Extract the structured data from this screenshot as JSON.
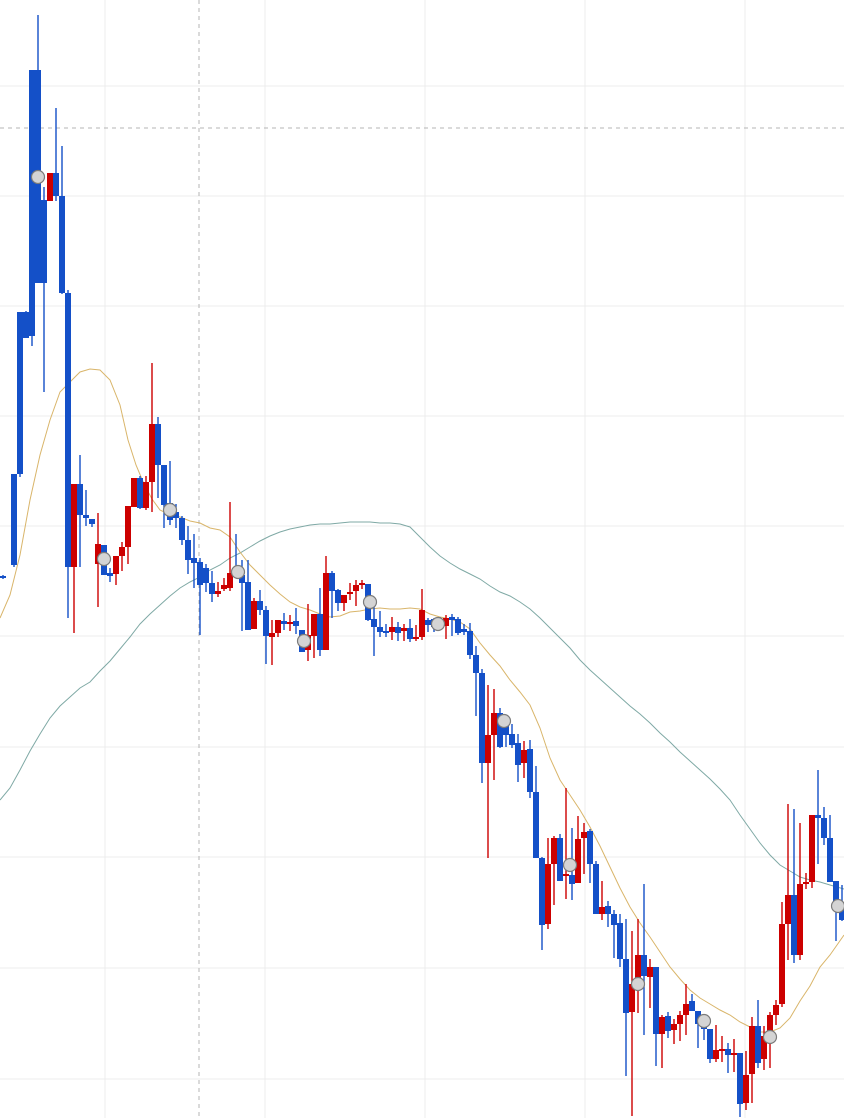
{
  "chart_data": {
    "type": "candlestick",
    "title": "",
    "xlabel": "",
    "ylabel": "",
    "ylim": [
      0,
      1118
    ],
    "grid": true,
    "colors": {
      "up": "#cc0000",
      "down": "#1450c8",
      "ma_short": "#d9b56a",
      "ma_long": "#7fa9a5",
      "marker_fill": "#d4d4d4",
      "grid": "#ececec",
      "crosshair": "#b4b4b4"
    },
    "candles": [
      [
        3,
        579,
        575,
        576,
        578
      ],
      [
        14,
        474,
        567,
        474,
        565
      ],
      [
        20,
        312,
        477,
        312,
        474
      ],
      [
        26,
        311,
        338,
        312,
        338
      ],
      [
        32,
        70,
        346,
        70,
        336
      ],
      [
        38,
        15,
        283,
        70,
        283
      ],
      [
        44,
        187,
        392,
        200,
        283
      ],
      [
        50,
        173,
        201,
        201,
        173
      ],
      [
        56,
        108,
        201,
        173,
        196
      ],
      [
        62,
        146,
        294,
        196,
        293
      ],
      [
        68,
        290,
        618,
        293,
        567
      ],
      [
        74,
        484,
        633,
        567,
        484
      ],
      [
        80,
        455,
        567,
        484,
        515
      ],
      [
        86,
        490,
        526,
        515,
        518
      ],
      [
        92,
        520,
        527,
        519,
        524
      ],
      [
        98,
        513,
        607,
        564,
        544
      ],
      [
        104,
        545,
        574,
        545,
        575
      ],
      [
        110,
        568,
        582,
        573,
        576
      ],
      [
        116,
        559,
        585,
        574,
        556
      ],
      [
        122,
        542,
        571,
        556,
        547
      ],
      [
        128,
        506,
        564,
        547,
        506
      ],
      [
        134,
        478,
        507,
        507,
        478
      ],
      [
        140,
        476,
        509,
        478,
        508
      ],
      [
        146,
        476,
        510,
        508,
        482
      ],
      [
        152,
        363,
        512,
        482,
        424
      ],
      [
        158,
        417,
        498,
        424,
        465
      ],
      [
        164,
        469,
        528,
        465,
        505
      ],
      [
        170,
        461,
        525,
        503,
        520
      ],
      [
        176,
        504,
        528,
        512,
        518
      ],
      [
        182,
        516,
        545,
        518,
        540
      ],
      [
        188,
        526,
        574,
        540,
        560
      ],
      [
        194,
        534,
        588,
        558,
        563
      ],
      [
        200,
        558,
        635,
        562,
        585
      ],
      [
        206,
        564,
        592,
        568,
        583
      ],
      [
        212,
        571,
        602,
        583,
        594
      ],
      [
        218,
        582,
        597,
        594,
        591
      ],
      [
        224,
        578,
        591,
        589,
        585
      ],
      [
        230,
        502,
        591,
        588,
        573
      ],
      [
        236,
        534,
        578,
        573,
        573
      ],
      [
        242,
        560,
        631,
        575,
        583
      ],
      [
        248,
        560,
        630,
        582,
        630
      ],
      [
        254,
        598,
        625,
        629,
        601
      ],
      [
        260,
        590,
        615,
        601,
        610
      ],
      [
        266,
        606,
        664,
        610,
        636
      ],
      [
        272,
        620,
        665,
        637,
        633
      ],
      [
        278,
        620,
        637,
        633,
        620
      ],
      [
        284,
        613,
        630,
        621,
        624
      ],
      [
        290,
        615,
        631,
        624,
        622
      ],
      [
        296,
        608,
        634,
        621,
        626
      ],
      [
        302,
        630,
        652,
        630,
        652
      ],
      [
        308,
        604,
        661,
        650,
        635
      ],
      [
        314,
        622,
        658,
        636,
        614
      ],
      [
        320,
        588,
        656,
        614,
        650
      ],
      [
        326,
        556,
        650,
        650,
        573
      ],
      [
        332,
        571,
        618,
        573,
        591
      ],
      [
        338,
        589,
        611,
        590,
        603
      ],
      [
        344,
        597,
        611,
        603,
        595
      ],
      [
        350,
        583,
        600,
        593,
        592
      ],
      [
        356,
        580,
        606,
        591,
        585
      ],
      [
        362,
        580,
        589,
        585,
        583
      ],
      [
        368,
        584,
        621,
        584,
        620
      ],
      [
        374,
        605,
        656,
        619,
        627
      ],
      [
        380,
        611,
        637,
        627,
        632
      ],
      [
        386,
        624,
        637,
        631,
        632
      ],
      [
        392,
        617,
        640,
        632,
        627
      ],
      [
        398,
        622,
        641,
        627,
        633
      ],
      [
        404,
        624,
        641,
        631,
        628
      ],
      [
        410,
        619,
        642,
        628,
        639
      ],
      [
        416,
        625,
        641,
        638,
        637
      ],
      [
        422,
        589,
        640,
        637,
        610
      ],
      [
        428,
        618,
        632,
        620,
        625
      ],
      [
        434,
        618,
        632,
        619,
        627
      ],
      [
        440,
        617,
        628,
        626,
        626
      ],
      [
        446,
        615,
        639,
        626,
        618
      ],
      [
        452,
        614,
        636,
        617,
        620
      ],
      [
        458,
        617,
        635,
        619,
        633
      ],
      [
        464,
        624,
        635,
        629,
        632
      ],
      [
        470,
        623,
        659,
        631,
        655
      ],
      [
        476,
        646,
        716,
        655,
        673
      ],
      [
        482,
        669,
        783,
        673,
        763
      ],
      [
        488,
        685,
        858,
        763,
        735
      ],
      [
        494,
        689,
        780,
        735,
        713
      ],
      [
        500,
        708,
        748,
        713,
        747
      ],
      [
        506,
        715,
        747,
        724,
        735
      ],
      [
        512,
        724,
        748,
        734,
        745
      ],
      [
        518,
        734,
        782,
        743,
        765
      ],
      [
        524,
        741,
        778,
        763,
        750
      ],
      [
        530,
        740,
        798,
        749,
        792
      ],
      [
        536,
        766,
        853,
        792,
        858
      ],
      [
        542,
        857,
        950,
        858,
        925
      ],
      [
        548,
        838,
        929,
        924,
        864
      ],
      [
        554,
        836,
        905,
        864,
        838
      ],
      [
        560,
        834,
        880,
        838,
        881
      ],
      [
        566,
        788,
        899,
        875,
        874
      ],
      [
        572,
        828,
        900,
        875,
        884
      ],
      [
        578,
        816,
        882,
        883,
        839
      ],
      [
        584,
        823,
        874,
        838,
        832
      ],
      [
        590,
        829,
        883,
        831,
        864
      ],
      [
        596,
        861,
        913,
        864,
        914
      ],
      [
        602,
        881,
        920,
        914,
        907
      ],
      [
        608,
        901,
        927,
        906,
        914
      ],
      [
        614,
        910,
        958,
        914,
        925
      ],
      [
        620,
        914,
        967,
        923,
        959
      ],
      [
        626,
        919,
        1076,
        959,
        1013
      ],
      [
        632,
        931,
        1116,
        1012,
        984
      ],
      [
        638,
        919,
        1013,
        984,
        955
      ],
      [
        644,
        884,
        1035,
        955,
        976
      ],
      [
        650,
        959,
        1008,
        977,
        967
      ],
      [
        656,
        972,
        1066,
        967,
        1034
      ],
      [
        662,
        1015,
        1068,
        1034,
        1017
      ],
      [
        668,
        1012,
        1038,
        1016,
        1031
      ],
      [
        674,
        1019,
        1044,
        1030,
        1024
      ],
      [
        680,
        1011,
        1041,
        1024,
        1015
      ],
      [
        686,
        984,
        1035,
        1015,
        1004
      ],
      [
        692,
        994,
        1008,
        1001,
        1011
      ],
      [
        698,
        1012,
        1048,
        1011,
        1024
      ],
      [
        704,
        1020,
        1040,
        1024,
        1029
      ],
      [
        710,
        1029,
        1063,
        1029,
        1059
      ],
      [
        716,
        1025,
        1062,
        1059,
        1050
      ],
      [
        722,
        1036,
        1062,
        1050,
        1049
      ],
      [
        728,
        1043,
        1073,
        1049,
        1055
      ],
      [
        734,
        1039,
        1072,
        1055,
        1053
      ],
      [
        740,
        1056,
        1117,
        1053,
        1104
      ],
      [
        746,
        1051,
        1110,
        1103,
        1075
      ],
      [
        752,
        1017,
        1103,
        1074,
        1026
      ],
      [
        758,
        1000,
        1068,
        1026,
        1063
      ],
      [
        764,
        1026,
        1070,
        1059,
        1036
      ],
      [
        770,
        1012,
        1068,
        1036,
        1015
      ],
      [
        776,
        1000,
        1025,
        1015,
        1005
      ],
      [
        782,
        902,
        1007,
        1004,
        924
      ],
      [
        788,
        804,
        960,
        924,
        895
      ],
      [
        794,
        809,
        963,
        895,
        955
      ],
      [
        800,
        823,
        960,
        955,
        884
      ],
      [
        806,
        873,
        889,
        884,
        882
      ],
      [
        812,
        815,
        888,
        882,
        815
      ],
      [
        818,
        770,
        864,
        815,
        818
      ],
      [
        824,
        807,
        845,
        818,
        838
      ],
      [
        830,
        815,
        882,
        838,
        882
      ],
      [
        836,
        883,
        941,
        881,
        905
      ],
      [
        842,
        885,
        921,
        904,
        920
      ]
    ],
    "ma_short": [
      [
        0,
        618
      ],
      [
        10,
        595
      ],
      [
        20,
        555
      ],
      [
        30,
        500
      ],
      [
        40,
        455
      ],
      [
        50,
        420
      ],
      [
        60,
        392
      ],
      [
        70,
        382
      ],
      [
        80,
        372
      ],
      [
        90,
        369
      ],
      [
        100,
        370
      ],
      [
        110,
        380
      ],
      [
        120,
        405
      ],
      [
        128,
        440
      ],
      [
        136,
        465
      ],
      [
        144,
        484
      ],
      [
        152,
        499
      ],
      [
        160,
        510
      ],
      [
        170,
        515
      ],
      [
        180,
        517
      ],
      [
        190,
        521
      ],
      [
        200,
        523
      ],
      [
        210,
        528
      ],
      [
        220,
        530
      ],
      [
        230,
        537
      ],
      [
        240,
        552
      ],
      [
        250,
        565
      ],
      [
        260,
        575
      ],
      [
        270,
        585
      ],
      [
        280,
        594
      ],
      [
        290,
        602
      ],
      [
        300,
        607
      ],
      [
        310,
        610
      ],
      [
        320,
        614
      ],
      [
        330,
        617
      ],
      [
        340,
        616
      ],
      [
        350,
        612
      ],
      [
        360,
        611
      ],
      [
        370,
        609
      ],
      [
        380,
        608
      ],
      [
        390,
        609
      ],
      [
        400,
        609
      ],
      [
        410,
        608
      ],
      [
        420,
        609
      ],
      [
        430,
        614
      ],
      [
        440,
        617
      ],
      [
        450,
        619
      ],
      [
        460,
        622
      ],
      [
        470,
        629
      ],
      [
        480,
        643
      ],
      [
        490,
        655
      ],
      [
        500,
        666
      ],
      [
        510,
        680
      ],
      [
        520,
        692
      ],
      [
        530,
        705
      ],
      [
        540,
        728
      ],
      [
        550,
        758
      ],
      [
        560,
        780
      ],
      [
        570,
        795
      ],
      [
        580,
        810
      ],
      [
        590,
        827
      ],
      [
        600,
        846
      ],
      [
        610,
        867
      ],
      [
        620,
        888
      ],
      [
        630,
        907
      ],
      [
        640,
        923
      ],
      [
        650,
        937
      ],
      [
        660,
        952
      ],
      [
        670,
        967
      ],
      [
        680,
        979
      ],
      [
        690,
        990
      ],
      [
        700,
        998
      ],
      [
        710,
        1004
      ],
      [
        720,
        1010
      ],
      [
        730,
        1015
      ],
      [
        740,
        1022
      ],
      [
        750,
        1027
      ],
      [
        760,
        1032
      ],
      [
        770,
        1032
      ],
      [
        780,
        1028
      ],
      [
        790,
        1018
      ],
      [
        800,
        1001
      ],
      [
        810,
        986
      ],
      [
        820,
        967
      ],
      [
        830,
        955
      ],
      [
        844,
        935
      ]
    ],
    "ma_long": [
      [
        0,
        800
      ],
      [
        10,
        788
      ],
      [
        20,
        770
      ],
      [
        30,
        751
      ],
      [
        40,
        734
      ],
      [
        50,
        718
      ],
      [
        60,
        706
      ],
      [
        70,
        697
      ],
      [
        80,
        688
      ],
      [
        90,
        682
      ],
      [
        100,
        671
      ],
      [
        110,
        661
      ],
      [
        120,
        649
      ],
      [
        130,
        637
      ],
      [
        140,
        624
      ],
      [
        150,
        614
      ],
      [
        160,
        605
      ],
      [
        170,
        596
      ],
      [
        180,
        588
      ],
      [
        190,
        582
      ],
      [
        200,
        577
      ],
      [
        210,
        570
      ],
      [
        220,
        565
      ],
      [
        230,
        558
      ],
      [
        240,
        553
      ],
      [
        250,
        547
      ],
      [
        260,
        541
      ],
      [
        270,
        536
      ],
      [
        280,
        532
      ],
      [
        290,
        529
      ],
      [
        300,
        527
      ],
      [
        310,
        525
      ],
      [
        320,
        524
      ],
      [
        330,
        524
      ],
      [
        340,
        523
      ],
      [
        350,
        522
      ],
      [
        360,
        522
      ],
      [
        370,
        522
      ],
      [
        380,
        523
      ],
      [
        390,
        523
      ],
      [
        400,
        524
      ],
      [
        410,
        527
      ],
      [
        420,
        537
      ],
      [
        430,
        547
      ],
      [
        440,
        556
      ],
      [
        450,
        563
      ],
      [
        460,
        569
      ],
      [
        470,
        574
      ],
      [
        480,
        579
      ],
      [
        490,
        586
      ],
      [
        500,
        592
      ],
      [
        510,
        596
      ],
      [
        520,
        602
      ],
      [
        530,
        609
      ],
      [
        540,
        618
      ],
      [
        550,
        628
      ],
      [
        560,
        638
      ],
      [
        570,
        648
      ],
      [
        580,
        660
      ],
      [
        590,
        670
      ],
      [
        600,
        679
      ],
      [
        610,
        688
      ],
      [
        620,
        697
      ],
      [
        630,
        706
      ],
      [
        640,
        714
      ],
      [
        650,
        723
      ],
      [
        660,
        733
      ],
      [
        670,
        742
      ],
      [
        680,
        752
      ],
      [
        690,
        761
      ],
      [
        700,
        770
      ],
      [
        710,
        779
      ],
      [
        720,
        789
      ],
      [
        730,
        800
      ],
      [
        740,
        815
      ],
      [
        750,
        829
      ],
      [
        760,
        843
      ],
      [
        770,
        855
      ],
      [
        780,
        865
      ],
      [
        790,
        871
      ],
      [
        800,
        877
      ],
      [
        810,
        880
      ],
      [
        820,
        882
      ],
      [
        830,
        885
      ],
      [
        844,
        889
      ]
    ],
    "markers": [
      [
        38,
        177
      ],
      [
        104,
        559
      ],
      [
        170,
        510
      ],
      [
        238,
        572
      ],
      [
        304,
        641
      ],
      [
        370,
        602
      ],
      [
        438,
        624
      ],
      [
        504,
        721
      ],
      [
        570,
        865
      ],
      [
        638,
        984
      ],
      [
        704,
        1021
      ],
      [
        770,
        1037
      ],
      [
        838,
        906
      ]
    ],
    "grid_x": [
      105,
      265,
      425,
      585,
      745
    ],
    "grid_y": [
      86,
      196,
      306,
      416,
      526,
      636,
      747,
      857,
      968,
      1079
    ],
    "crosshair": {
      "x": 199,
      "y": 128
    }
  }
}
